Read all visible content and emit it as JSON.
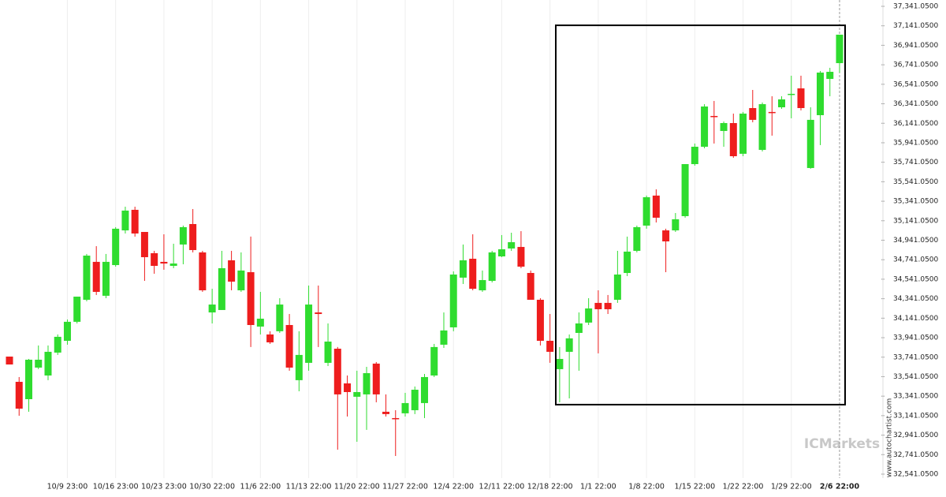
{
  "chart_data": {
    "type": "candlestick",
    "categories": [
      null,
      null,
      null,
      null,
      null,
      null,
      "10/9 23:00",
      null,
      null,
      null,
      null,
      "10/16 23:00",
      null,
      null,
      null,
      null,
      "10/23 23:00",
      null,
      null,
      null,
      null,
      "10/30 22:00",
      null,
      null,
      null,
      null,
      "11/6 22:00",
      null,
      null,
      null,
      null,
      "11/13 22:00",
      null,
      null,
      null,
      null,
      "11/20 22:00",
      null,
      null,
      null,
      null,
      "11/27 22:00",
      null,
      null,
      null,
      null,
      "12/4 22:00",
      null,
      null,
      null,
      null,
      "12/11 22:00",
      null,
      null,
      null,
      null,
      "12/18 22:00",
      null,
      null,
      null,
      null,
      "1/1 22:00",
      null,
      null,
      null,
      null,
      "1/8 22:00",
      null,
      null,
      null,
      null,
      "1/15 22:00",
      null,
      null,
      null,
      null,
      "1/22 22:00",
      null,
      null,
      null,
      null,
      "1/29 22:00",
      null,
      null,
      null,
      null,
      "2/6 22:00"
    ],
    "open": [
      33747,
      33488,
      33310,
      33634,
      33553,
      33788,
      33909,
      34104,
      34330,
      34719,
      34371,
      34686,
      35042,
      35253,
      35026,
      34808,
      34719,
      34678,
      34897,
      35107,
      34816,
      34200,
      34225,
      34735,
      34427,
      34613,
      34055,
      33974,
      34007,
      34071,
      33505,
      33683,
      34200,
      33683,
      33828,
      33472,
      33335,
      33359,
      33675,
      33181,
      33116,
      33165,
      33197,
      33270,
      33553,
      33869,
      34047,
      34557,
      34751,
      34427,
      34524,
      34775,
      34856,
      34872,
      34605,
      34330,
      33909,
      33618,
      33796,
      33990,
      34096,
      34298,
      34298,
      34330,
      34605,
      34832,
      35091,
      35399,
      35042,
      35042,
      35188,
      35722,
      35900,
      36216,
      36062,
      36143,
      35828,
      36297,
      35868,
      36257,
      36305,
      36435,
      36499,
      35682,
      36224,
      36596,
      36758
    ],
    "high": [
      33747,
      33537,
      33723,
      33861,
      33861,
      33974,
      34128,
      34362,
      34800,
      34880,
      34800,
      35075,
      35285,
      35285,
      35026,
      34832,
      35002,
      34905,
      35091,
      35261,
      34832,
      34443,
      34832,
      34832,
      34816,
      34978,
      34411,
      34007,
      34346,
      34184,
      34007,
      34476,
      34476,
      34087,
      33845,
      33553,
      33602,
      33642,
      33691,
      33359,
      33197,
      33375,
      33440,
      33569,
      33877,
      34200,
      34621,
      34897,
      35002,
      34630,
      34832,
      34994,
      35018,
      35034,
      34630,
      34346,
      34184,
      33845,
      33974,
      34200,
      34346,
      34427,
      34379,
      34832,
      34978,
      35091,
      35399,
      35463,
      35059,
      35220,
      35722,
      35933,
      36337,
      36370,
      36159,
      36240,
      36257,
      36483,
      36354,
      36418,
      36418,
      36629,
      36629,
      36305,
      36677,
      36710,
      37050
    ],
    "low": [
      33666,
      33140,
      33181,
      33618,
      33505,
      33764,
      33869,
      34087,
      34314,
      34379,
      34346,
      34670,
      35010,
      34978,
      34524,
      34597,
      34638,
      34654,
      34694,
      34816,
      34411,
      34087,
      34225,
      34427,
      34411,
      33845,
      33974,
      33877,
      33990,
      33602,
      33391,
      33602,
      33845,
      33650,
      32792,
      33132,
      32873,
      32995,
      33278,
      33132,
      32727,
      33132,
      33157,
      33116,
      33537,
      33836,
      34007,
      34492,
      34427,
      34411,
      34508,
      34767,
      34832,
      34654,
      34330,
      33861,
      33683,
      33278,
      33318,
      33602,
      34071,
      33780,
      34184,
      34298,
      34573,
      34816,
      35059,
      35123,
      34613,
      35026,
      35172,
      35706,
      35884,
      35933,
      35900,
      35787,
      35803,
      36151,
      35852,
      36014,
      36289,
      36192,
      36273,
      35674,
      35917,
      36418,
      36661
    ],
    "close": [
      33666,
      33213,
      33715,
      33715,
      33796,
      33950,
      34104,
      34362,
      34783,
      34411,
      34719,
      35059,
      35245,
      35010,
      34767,
      34678,
      34702,
      34702,
      35075,
      34840,
      34427,
      34281,
      34654,
      34516,
      34630,
      34071,
      34136,
      33893,
      34281,
      33634,
      33764,
      34281,
      34184,
      33901,
      33359,
      33383,
      33383,
      33577,
      33359,
      33157,
      33108,
      33270,
      33407,
      33537,
      33845,
      34015,
      34589,
      34735,
      34443,
      34532,
      34816,
      34848,
      34921,
      34670,
      34330,
      33909,
      33796,
      33723,
      33934,
      34087,
      34241,
      34233,
      34233,
      34589,
      34824,
      35075,
      35382,
      35172,
      34929,
      35156,
      35722,
      35900,
      36313,
      36208,
      36143,
      35803,
      36240,
      36176,
      36337,
      36248,
      36386,
      36443,
      36297,
      36176,
      36661,
      36669,
      37050
    ],
    "up_color": "#2fdc2f",
    "down_color": "#ee1d1d",
    "ylim": [
      32541.05,
      37341.05
    ],
    "yticks": [
      {
        "value": 32541.05,
        "label": "32,541.0500"
      },
      {
        "value": 32741.05,
        "label": "32,741.0500"
      },
      {
        "value": 32941.05,
        "label": "32,941.0500"
      },
      {
        "value": 33141.05,
        "label": "33,141.0500"
      },
      {
        "value": 33341.05,
        "label": "33,341.0500"
      },
      {
        "value": 33541.05,
        "label": "33,541.0500"
      },
      {
        "value": 33741.05,
        "label": "33,741.0500"
      },
      {
        "value": 33941.05,
        "label": "33,941.0500"
      },
      {
        "value": 34141.05,
        "label": "34,141.0500"
      },
      {
        "value": 34341.05,
        "label": "34,341.0500"
      },
      {
        "value": 34541.05,
        "label": "34,541.0500"
      },
      {
        "value": 34741.05,
        "label": "34,741.0500"
      },
      {
        "value": 34941.05,
        "label": "34,941.0500"
      },
      {
        "value": 35141.05,
        "label": "35,141.0500"
      },
      {
        "value": 35341.05,
        "label": "35,341.0500"
      },
      {
        "value": 35541.05,
        "label": "35,541.0500"
      },
      {
        "value": 35741.05,
        "label": "35,741.0500"
      },
      {
        "value": 35941.05,
        "label": "35,941.0500"
      },
      {
        "value": 36141.05,
        "label": "36,141.0500"
      },
      {
        "value": 36341.05,
        "label": "36,341.0500"
      },
      {
        "value": 36541.05,
        "label": "36,541.0500"
      },
      {
        "value": 36741.05,
        "label": "36,741.0500"
      },
      {
        "value": 36941.05,
        "label": "36,941.0500"
      },
      {
        "value": 37141.05,
        "label": "37,141.0500"
      },
      {
        "value": 37341.05,
        "label": "37,341.0500"
      }
    ],
    "grid": true,
    "highlight": {
      "top": 37146,
      "bottom": 33254
    },
    "watermark": "ICMarkets",
    "source": "www.autochartist.com"
  }
}
